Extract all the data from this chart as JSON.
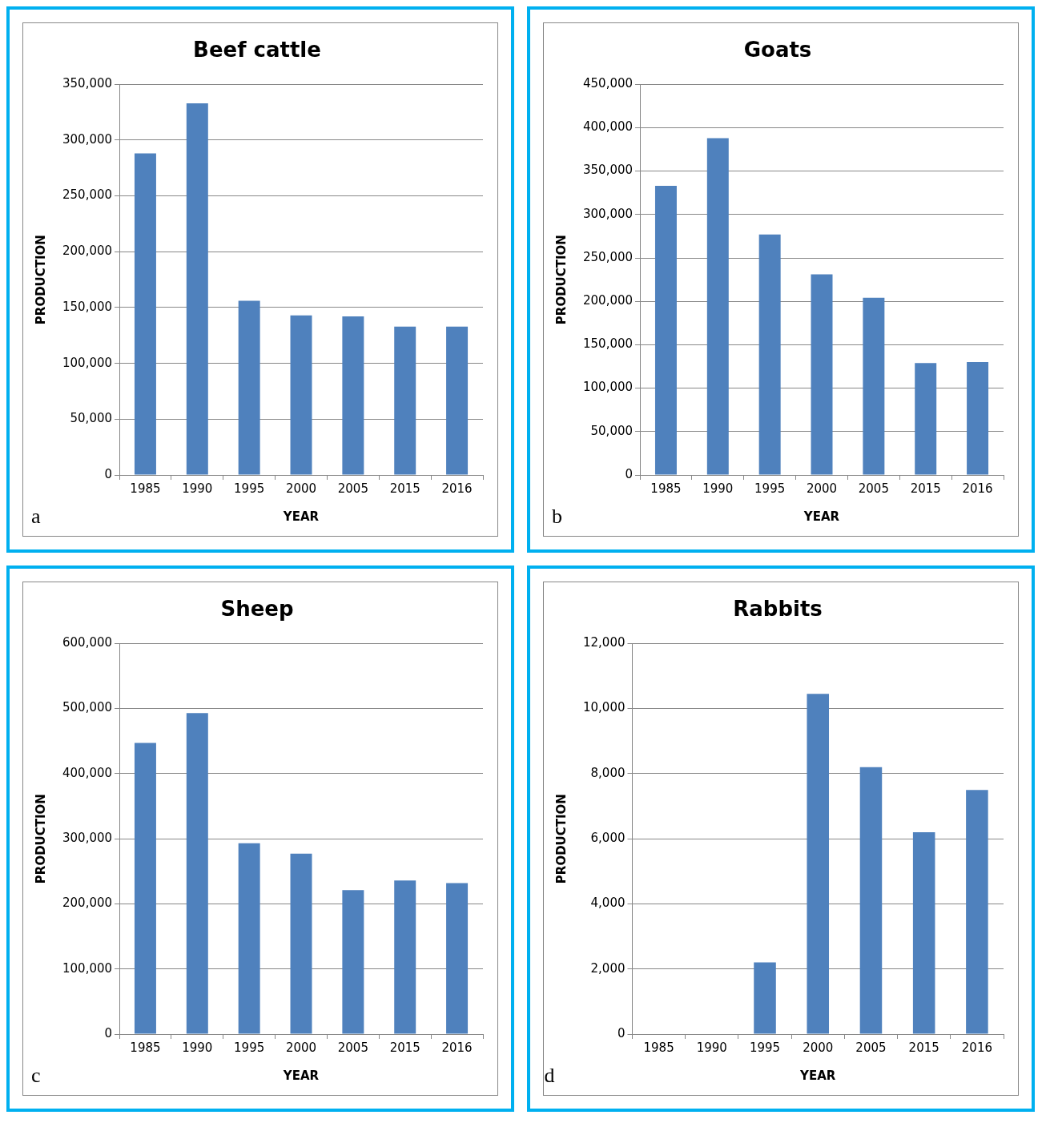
{
  "chart_data": [
    {
      "type": "bar",
      "title": "Beef cattle",
      "xlabel": "YEAR",
      "ylabel": "PRODUCTION",
      "categories": [
        "1985",
        "1990",
        "1995",
        "2000",
        "2005",
        "2015",
        "2016"
      ],
      "values": [
        288000,
        333000,
        156000,
        143000,
        142000,
        133000,
        133000
      ],
      "color": "#4f81bd",
      "ylim": [
        0,
        350000
      ],
      "yticks": [
        {
          "value": 0,
          "label": "0"
        },
        {
          "value": 50000,
          "label": "50,000"
        },
        {
          "value": 100000,
          "label": "100,000"
        },
        {
          "value": 150000,
          "label": "150,000"
        },
        {
          "value": 200000,
          "label": "200,000"
        },
        {
          "value": 250000,
          "label": "250,000"
        },
        {
          "value": 300000,
          "label": "300,000"
        },
        {
          "value": 350000,
          "label": "350,000"
        }
      ],
      "grid": "y",
      "legend": false,
      "annotations": [
        "a"
      ]
    },
    {
      "type": "bar",
      "title": "Goats",
      "xlabel": "YEAR",
      "ylabel": "PRODUCTION",
      "categories": [
        "1985",
        "1990",
        "1995",
        "2000",
        "2005",
        "2015",
        "2016"
      ],
      "values": [
        333000,
        388000,
        277000,
        231000,
        204000,
        129000,
        130000
      ],
      "color": "#4f81bd",
      "ylim": [
        0,
        450000
      ],
      "yticks": [
        {
          "value": 0,
          "label": "0"
        },
        {
          "value": 50000,
          "label": "50,000"
        },
        {
          "value": 100000,
          "label": "100,000"
        },
        {
          "value": 150000,
          "label": "150,000"
        },
        {
          "value": 200000,
          "label": "200,000"
        },
        {
          "value": 250000,
          "label": "250,000"
        },
        {
          "value": 300000,
          "label": "300,000"
        },
        {
          "value": 350000,
          "label": "350,000"
        },
        {
          "value": 400000,
          "label": "400,000"
        },
        {
          "value": 450000,
          "label": "450,000"
        }
      ],
      "grid": "y",
      "legend": false,
      "annotations": [
        "b"
      ]
    },
    {
      "type": "bar",
      "title": "Sheep",
      "xlabel": "YEAR",
      "ylabel": "PRODUCTION",
      "categories": [
        "1985",
        "1990",
        "1995",
        "2000",
        "2005",
        "2015",
        "2016"
      ],
      "values": [
        447000,
        493000,
        293000,
        277000,
        221000,
        236000,
        232000
      ],
      "color": "#4f81bd",
      "ylim": [
        0,
        600000
      ],
      "yticks": [
        {
          "value": 0,
          "label": "0"
        },
        {
          "value": 100000,
          "label": "100,000"
        },
        {
          "value": 200000,
          "label": "200,000"
        },
        {
          "value": 300000,
          "label": "300,000"
        },
        {
          "value": 400000,
          "label": "400,000"
        },
        {
          "value": 500000,
          "label": "500,000"
        },
        {
          "value": 600000,
          "label": "600,000"
        }
      ],
      "grid": "y",
      "legend": false,
      "annotations": [
        "c"
      ]
    },
    {
      "type": "bar",
      "title": "Rabbits",
      "xlabel": "YEAR",
      "ylabel": "PRODUCTION",
      "categories": [
        "1985",
        "1990",
        "1995",
        "2000",
        "2005",
        "2015",
        "2016"
      ],
      "values": [
        0,
        0,
        2200,
        10450,
        8200,
        6200,
        7500
      ],
      "color": "#4f81bd",
      "ylim": [
        0,
        12000
      ],
      "yticks": [
        {
          "value": 0,
          "label": "0"
        },
        {
          "value": 2000,
          "label": "2,000"
        },
        {
          "value": 4000,
          "label": "4,000"
        },
        {
          "value": 6000,
          "label": "6,000"
        },
        {
          "value": 8000,
          "label": "8,000"
        },
        {
          "value": 10000,
          "label": "10,000"
        },
        {
          "value": 12000,
          "label": "12,000"
        }
      ],
      "grid": "y",
      "legend": false,
      "annotations": [
        "d"
      ]
    }
  ]
}
